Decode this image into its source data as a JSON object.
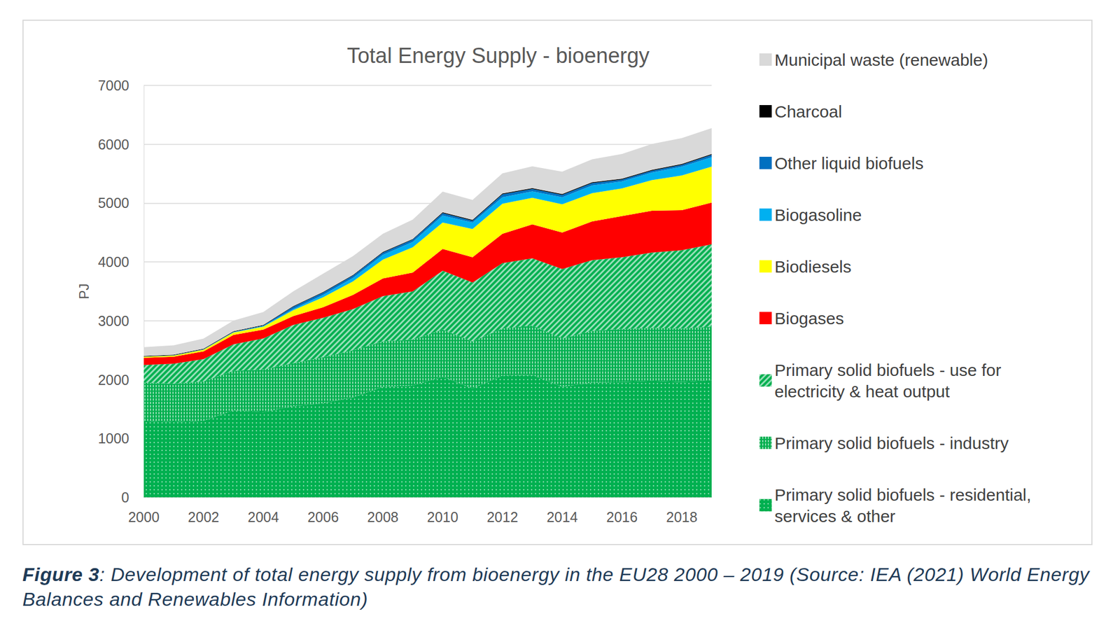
{
  "chart_data": {
    "type": "area",
    "title": "Total Energy Supply - bioenergy",
    "y_label": "PJ",
    "categories": [
      "2000",
      null,
      "2002",
      null,
      "2004",
      null,
      "2006",
      null,
      "2008",
      null,
      "2010",
      null,
      "2012",
      null,
      "2014",
      null,
      "2016",
      null,
      "2018",
      null
    ],
    "stacked": true,
    "grid": true,
    "legend": "right",
    "ylim": [
      0,
      7000
    ],
    "yticks": [
      0,
      1000,
      2000,
      3000,
      4000,
      5000,
      6000,
      7000
    ],
    "series": [
      {
        "name": "Primary solid biofuels - residential, services & other",
        "color": "#00b050",
        "values": [
          1300,
          1280,
          1300,
          1480,
          1450,
          1550,
          1600,
          1700,
          1880,
          1900,
          2050,
          1850,
          2070,
          2080,
          1880,
          1950,
          1960,
          1980,
          1960,
          1990
        ]
      },
      {
        "name": "Primary solid biofuels - industry",
        "color": "#00b050",
        "values": [
          650,
          650,
          670,
          670,
          720,
          730,
          780,
          800,
          770,
          780,
          800,
          800,
          800,
          840,
          820,
          880,
          900,
          900,
          910,
          910
        ]
      },
      {
        "name": "Primary solid biofuels - use for electricity & heat output",
        "color": "#00b050",
        "values": [
          300,
          340,
          380,
          450,
          530,
          650,
          670,
          700,
          770,
          820,
          1000,
          1000,
          1110,
          1140,
          1180,
          1200,
          1220,
          1280,
          1330,
          1400
        ]
      },
      {
        "name": "Biogases",
        "color": "#ff0000",
        "values": [
          120,
          120,
          130,
          160,
          150,
          150,
          180,
          240,
          300,
          320,
          370,
          430,
          500,
          580,
          620,
          660,
          700,
          710,
          680,
          710
        ]
      },
      {
        "name": "Biodiesels",
        "color": "#ffff00",
        "values": [
          20,
          20,
          30,
          40,
          50,
          100,
          170,
          230,
          320,
          430,
          450,
          480,
          510,
          450,
          480,
          480,
          470,
          520,
          590,
          610
        ]
      },
      {
        "name": "Biogasoline",
        "color": "#00b0f0",
        "values": [
          2,
          3,
          5,
          8,
          10,
          20,
          40,
          60,
          80,
          90,
          120,
          110,
          110,
          110,
          120,
          130,
          120,
          130,
          150,
          160
        ]
      },
      {
        "name": "Other liquid biofuels",
        "color": "#0070c0",
        "values": [
          0,
          0,
          2,
          5,
          10,
          40,
          40,
          40,
          40,
          40,
          40,
          30,
          50,
          40,
          40,
          40,
          30,
          30,
          30,
          40
        ]
      },
      {
        "name": "Charcoal",
        "color": "#000000",
        "values": [
          10,
          10,
          10,
          10,
          10,
          10,
          10,
          10,
          10,
          10,
          15,
          15,
          15,
          15,
          15,
          15,
          15,
          15,
          15,
          15
        ]
      },
      {
        "name": "Municipal waste (renewable)",
        "color": "#d9d9d9",
        "values": [
          150,
          160,
          170,
          180,
          220,
          250,
          310,
          320,
          310,
          330,
          350,
          340,
          340,
          370,
          380,
          390,
          420,
          440,
          440,
          440
        ]
      }
    ],
    "caption": {
      "label": "Figure 3",
      "text": ": Development of total energy supply from bioenergy in the EU28 2000 – 2019 (Source: IEA (2021) World Energy Balances and Renewables Information)"
    }
  }
}
